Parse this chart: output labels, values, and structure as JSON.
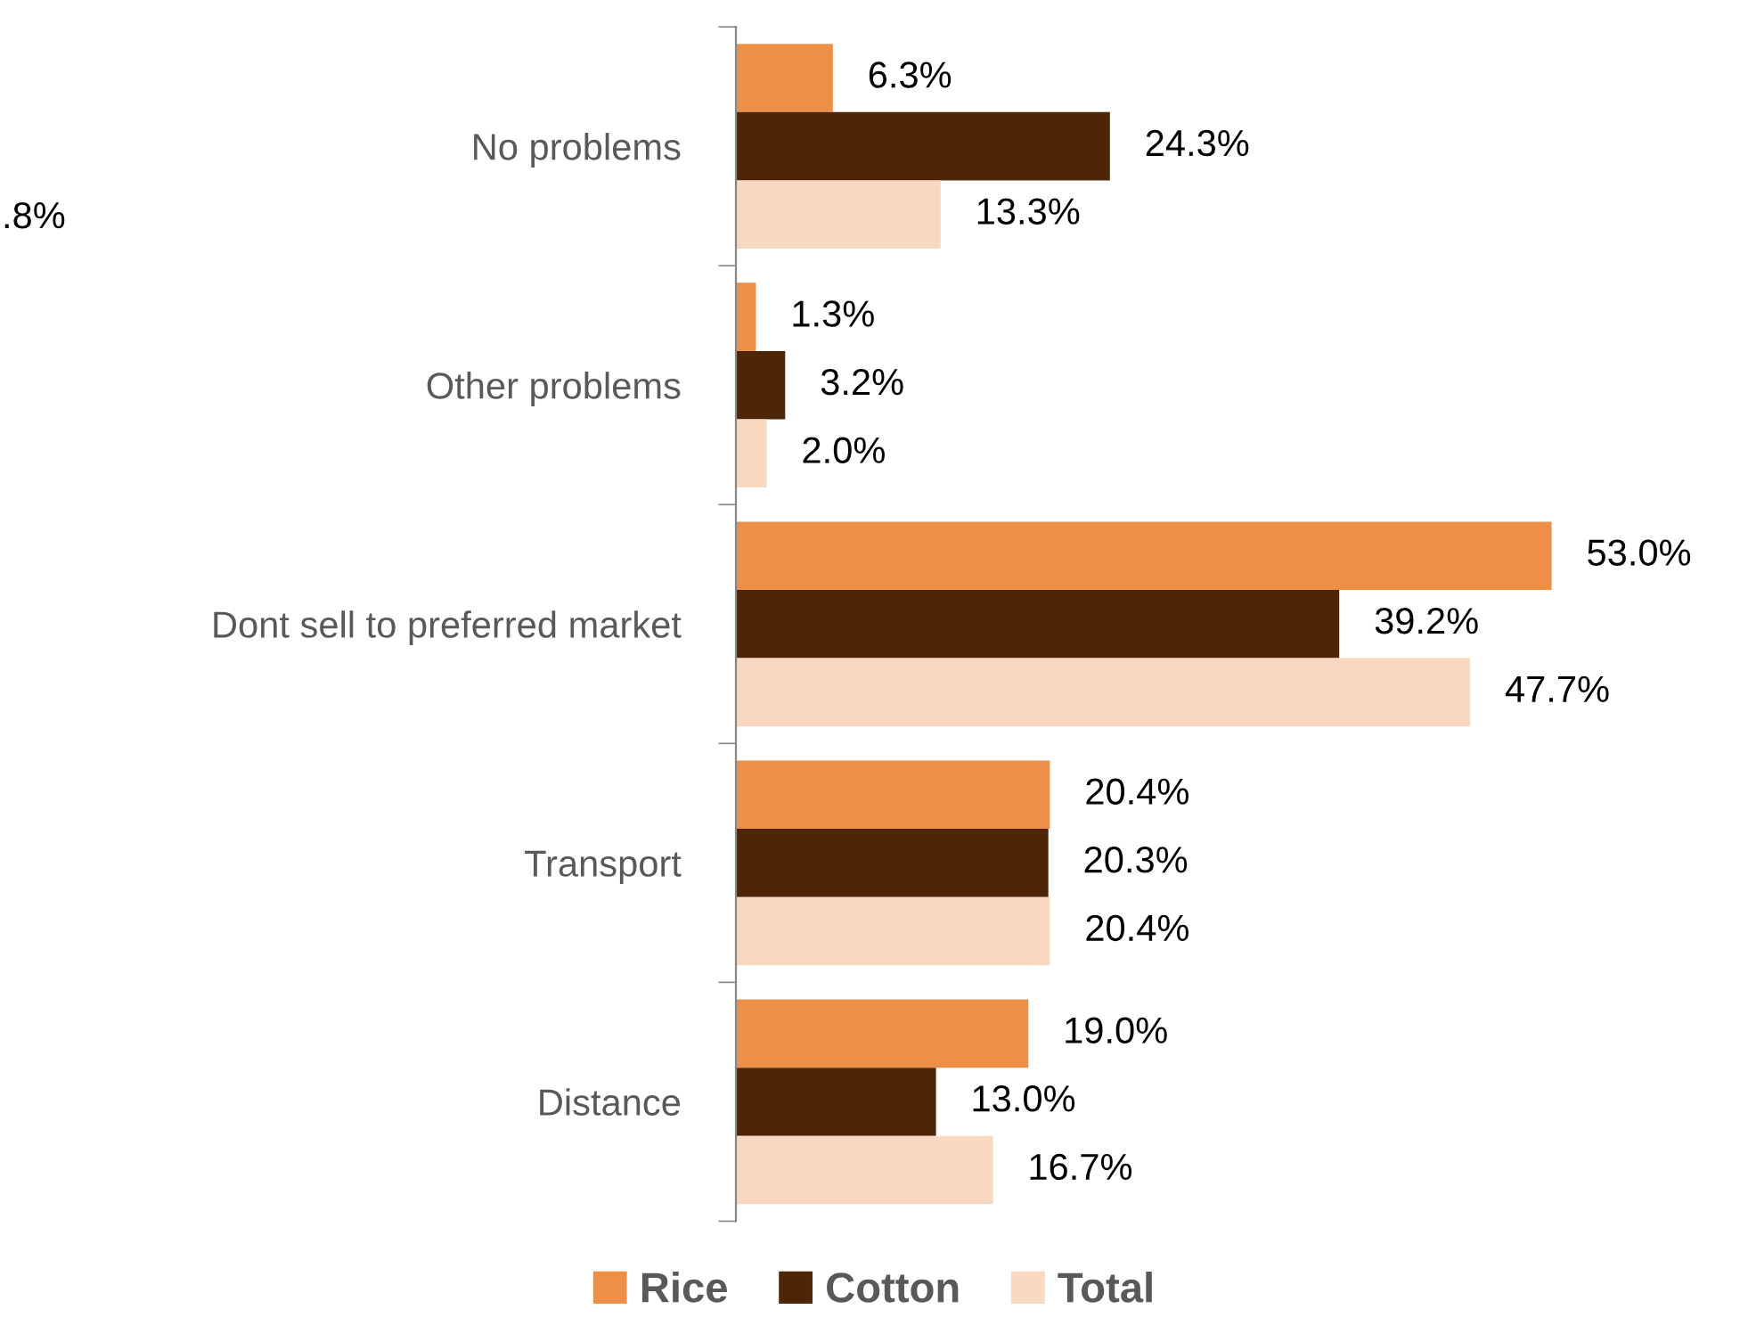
{
  "chart_data": {
    "type": "bar",
    "orientation": "horizontal",
    "categories": [
      "No problems",
      "Other problems",
      "Dont sell to preferred market",
      "Transport",
      "Distance"
    ],
    "series": [
      {
        "name": "Rice",
        "color": "#ed8f47",
        "values": [
          6.3,
          1.3,
          53.0,
          20.4,
          19.0
        ],
        "value_labels": [
          "6.3%",
          "1.3%",
          "53.0%",
          "20.4%",
          "19.0%"
        ]
      },
      {
        "name": "Cotton",
        "color": "#4e2607",
        "values": [
          24.3,
          3.2,
          39.2,
          20.3,
          13.0
        ],
        "value_labels": [
          "24.3%",
          "3.2%",
          "39.2%",
          "20.3%",
          "13.0%"
        ]
      },
      {
        "name": "Total",
        "color": "#f8d8c0",
        "values": [
          13.3,
          2.0,
          47.7,
          20.4,
          16.7
        ],
        "value_labels": [
          "13.3%",
          "2.0%",
          "47.7%",
          "20.4%",
          "16.7%"
        ]
      }
    ],
    "tick_labels": "y",
    "legend": "bottom",
    "annotations": [
      ".8%"
    ]
  }
}
